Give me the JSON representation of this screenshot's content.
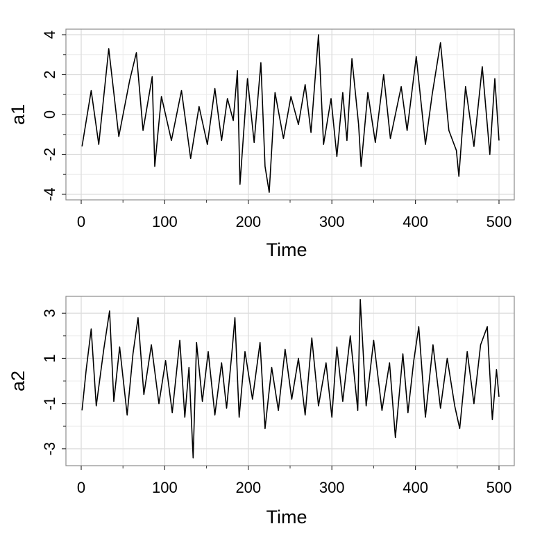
{
  "chart_data": [
    {
      "type": "line",
      "xlabel": "Time",
      "ylabel": "a1",
      "xlim": [
        0,
        500
      ],
      "ylim": [
        -4,
        4
      ],
      "xticks": [
        0,
        100,
        200,
        300,
        400,
        500
      ],
      "yticks": [
        -4,
        -2,
        0,
        2,
        4
      ],
      "grid": true,
      "line_color": "#000000",
      "series": [
        {
          "x": [
            1,
            12,
            21,
            33,
            45,
            58,
            66,
            74,
            85,
            88,
            96,
            108,
            120,
            131,
            141,
            151,
            160,
            168,
            175,
            182,
            187,
            190,
            199,
            207,
            215,
            220,
            225,
            232,
            242,
            251,
            260,
            268,
            275,
            284,
            290,
            299,
            306,
            313,
            318,
            324,
            332,
            335,
            343,
            352,
            362,
            370,
            383,
            390,
            401,
            412,
            420,
            430,
            440,
            449,
            452,
            460,
            470,
            480,
            489,
            495,
            500
          ],
          "y": [
            -1.6,
            1.2,
            -1.5,
            3.3,
            -1.1,
            1.7,
            3.1,
            -0.8,
            1.9,
            -2.6,
            0.9,
            -1.3,
            1.2,
            -2.2,
            0.4,
            -1.5,
            1.3,
            -1.3,
            0.8,
            -0.3,
            2.2,
            -3.5,
            1.8,
            -1.4,
            2.6,
            -2.6,
            -3.9,
            1.1,
            -1.2,
            0.9,
            -0.5,
            1.5,
            -0.9,
            4.0,
            -1.5,
            0.8,
            -2.1,
            1.1,
            -1.3,
            2.8,
            -0.5,
            -2.6,
            1.1,
            -1.4,
            2.0,
            -1.2,
            1.4,
            -0.8,
            2.9,
            -1.5,
            1.0,
            3.6,
            -0.8,
            -1.8,
            -3.1,
            1.4,
            -1.6,
            2.4,
            -2.0,
            1.8,
            -1.3
          ]
        }
      ]
    },
    {
      "type": "line",
      "xlabel": "Time",
      "ylabel": "a2",
      "xlim": [
        0,
        500
      ],
      "ylim": [
        -3.5,
        3.5
      ],
      "xticks": [
        0,
        100,
        200,
        300,
        400,
        500
      ],
      "yticks": [
        -3,
        -1,
        1,
        3
      ],
      "grid": true,
      "line_color": "#000000",
      "series": [
        {
          "x": [
            1,
            6,
            12,
            18,
            27,
            34,
            39,
            46,
            55,
            62,
            68,
            75,
            84,
            93,
            101,
            109,
            118,
            124,
            129,
            134,
            138,
            145,
            152,
            160,
            168,
            174,
            180,
            184,
            189,
            196,
            205,
            214,
            220,
            228,
            236,
            244,
            252,
            260,
            268,
            276,
            284,
            293,
            300,
            306,
            313,
            322,
            331,
            334,
            341,
            350,
            360,
            369,
            376,
            385,
            391,
            398,
            404,
            412,
            421,
            430,
            438,
            447,
            453,
            462,
            470,
            478,
            486,
            492,
            497,
            500
          ],
          "y": [
            -1.3,
            0.5,
            2.3,
            -1.1,
            1.4,
            3.1,
            -0.9,
            1.5,
            -1.5,
            1.2,
            2.8,
            -0.6,
            1.6,
            -1.0,
            0.9,
            -1.4,
            1.8,
            -1.6,
            0.6,
            -3.4,
            1.7,
            -0.9,
            1.3,
            -1.5,
            0.8,
            -1.2,
            1.1,
            2.8,
            -1.6,
            1.3,
            -0.8,
            1.7,
            -2.1,
            0.6,
            -1.3,
            1.4,
            -0.8,
            1.0,
            -1.5,
            1.9,
            -1.1,
            0.8,
            -1.6,
            1.5,
            -0.9,
            2.0,
            -1.3,
            3.6,
            -1.1,
            1.8,
            -1.3,
            0.8,
            -2.5,
            1.2,
            -1.4,
            0.9,
            2.4,
            -1.6,
            1.6,
            -1.2,
            1.0,
            -1.1,
            -2.1,
            1.3,
            -1.0,
            1.6,
            2.4,
            -1.7,
            0.5,
            -0.7
          ]
        }
      ]
    }
  ]
}
